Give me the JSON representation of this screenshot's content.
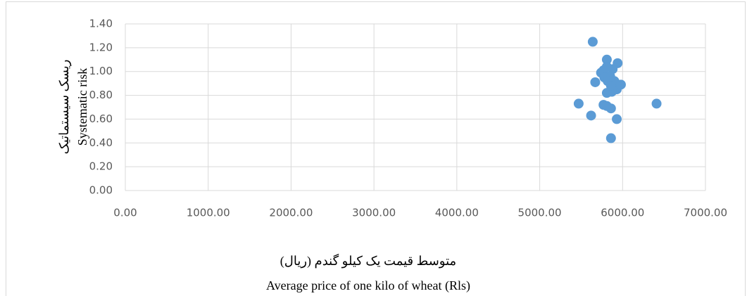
{
  "chart_data": {
    "type": "scatter",
    "x_label": [
      "متوسط قیمت یک کیلو گندم (ریال)",
      "Average price of one kilo of wheat (Rls)"
    ],
    "y_label": [
      "ریسک سیستماتیک",
      "Systematic risk"
    ],
    "series": [
      {
        "color": "#5b9bd5",
        "x": [
          5640,
          5810,
          5940,
          5810,
          5740,
          5770,
          5880,
          5850,
          5780,
          5820,
          5670,
          5900,
          5950,
          5930,
          5870,
          5810,
          5470,
          5770,
          5810,
          5860,
          6410,
          5620,
          5930,
          5860,
          5980,
          5860
        ],
        "values": [
          1.25,
          1.1,
          1.07,
          1.04,
          0.99,
          1.01,
          1.02,
          0.96,
          0.95,
          0.92,
          0.91,
          0.92,
          0.89,
          0.85,
          0.83,
          0.82,
          0.73,
          0.72,
          0.71,
          0.69,
          0.73,
          0.63,
          0.6,
          0.44,
          0.89,
          0.88
        ]
      }
    ],
    "xlim": [
      0,
      7000
    ],
    "ylim": [
      0,
      1.4
    ],
    "xticks": [
      {
        "value": 0,
        "label": "0.00"
      },
      {
        "value": 1000,
        "label": "1000.00"
      },
      {
        "value": 2000,
        "label": "2000.00"
      },
      {
        "value": 3000,
        "label": "3000.00"
      },
      {
        "value": 4000,
        "label": "4000.00"
      },
      {
        "value": 5000,
        "label": "5000.00"
      },
      {
        "value": 6000,
        "label": "6000.00"
      },
      {
        "value": 7000,
        "label": "7000.00"
      }
    ],
    "yticks": [
      {
        "value": 0,
        "label": "0.00"
      },
      {
        "value": 0.2,
        "label": "0.20"
      },
      {
        "value": 0.4,
        "label": "0.40"
      },
      {
        "value": 0.6,
        "label": "0.60"
      },
      {
        "value": 0.8,
        "label": "0.80"
      },
      {
        "value": 1.0,
        "label": "1.00"
      },
      {
        "value": 1.2,
        "label": "1.20"
      },
      {
        "value": 1.4,
        "label": "1.40"
      }
    ],
    "grid": true
  }
}
